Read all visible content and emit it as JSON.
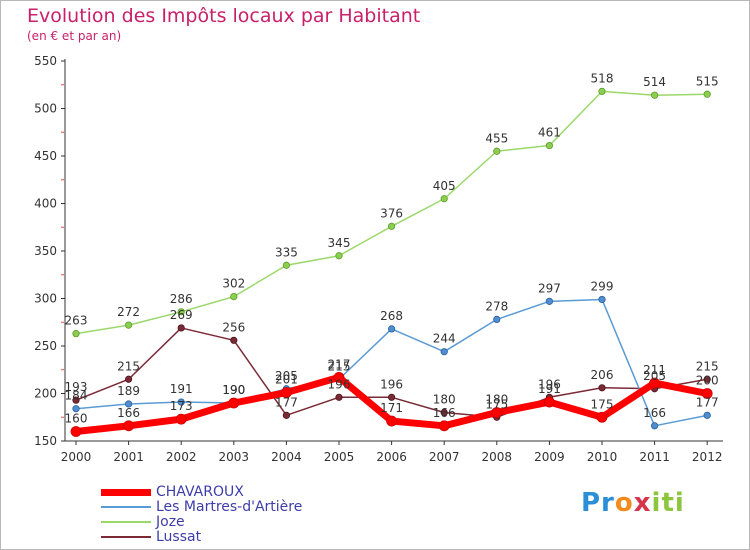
{
  "title": "Evolution des Impôts locaux par Habitant",
  "subtitle": "(en € et par an)",
  "logo": "Proxiti",
  "chart_data": {
    "type": "line",
    "x": [
      "2000",
      "2001",
      "2002",
      "2003",
      "2004",
      "2005",
      "2006",
      "2007",
      "2008",
      "2009",
      "2010",
      "2011",
      "2012"
    ],
    "ylim": [
      150,
      550
    ],
    "yticks": [
      150,
      200,
      250,
      300,
      350,
      400,
      450,
      500,
      550
    ],
    "grid": false,
    "legend_position": "bottom-left",
    "series": [
      {
        "name": "CHAVAROUX",
        "color": "#ff0000",
        "values": [
          160,
          166,
          173,
          190,
          201,
          217,
          171,
          166,
          180,
          191,
          175,
          211,
          200
        ]
      },
      {
        "name": "Les Martres-d'Artière",
        "color": "#5b9bd5",
        "values": [
          184,
          189,
          191,
          190,
          205,
          215,
          268,
          244,
          278,
          297,
          299,
          166,
          177
        ]
      },
      {
        "name": "Joze",
        "color": "#9bd86a",
        "values": [
          263,
          272,
          286,
          302,
          335,
          345,
          376,
          405,
          455,
          461,
          518,
          514,
          515
        ]
      },
      {
        "name": "Lussat",
        "color": "#7a2a35",
        "values": [
          193,
          215,
          269,
          256,
          177,
          196,
          196,
          180,
          175,
          196,
          206,
          205,
          215
        ]
      }
    ]
  }
}
